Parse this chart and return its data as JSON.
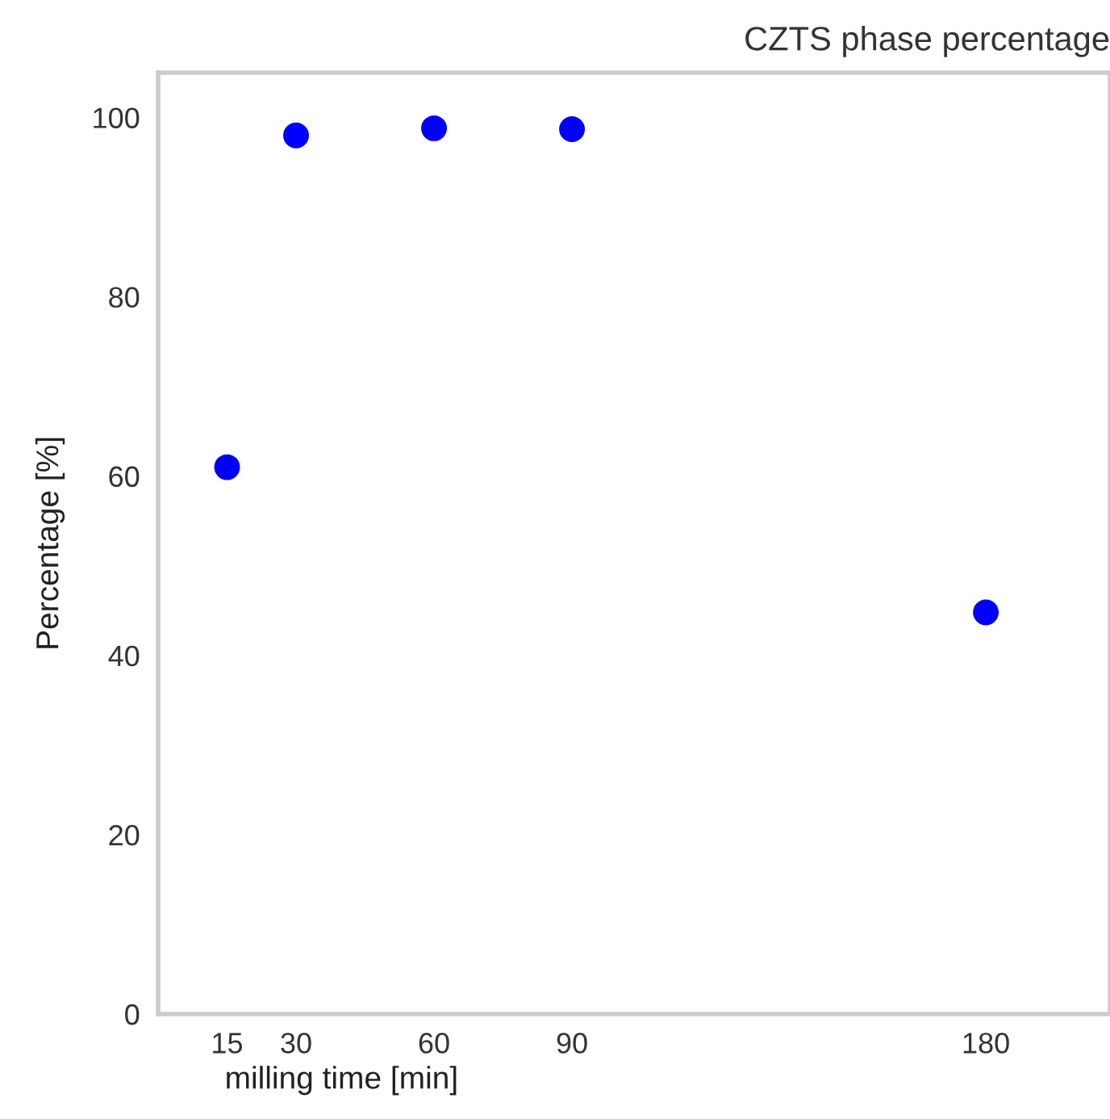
{
  "chart_data": {
    "type": "scatter",
    "title": "CZTS phase percentage",
    "xlabel": "milling time [min]",
    "ylabel": "Percentage [%]",
    "x": [
      15,
      30,
      60,
      90,
      180
    ],
    "series": [
      {
        "color": "#0000ff",
        "values": [
          61,
          98,
          98.8,
          98.7,
          44.8
        ]
      }
    ],
    "xlim": [
      0,
      207
    ],
    "ylim": [
      0,
      105
    ],
    "xticks": [
      15,
      30,
      60,
      90,
      180
    ],
    "yticks": [
      0,
      20,
      40,
      60,
      80,
      100
    ],
    "marker": "circle",
    "grid": false
  }
}
